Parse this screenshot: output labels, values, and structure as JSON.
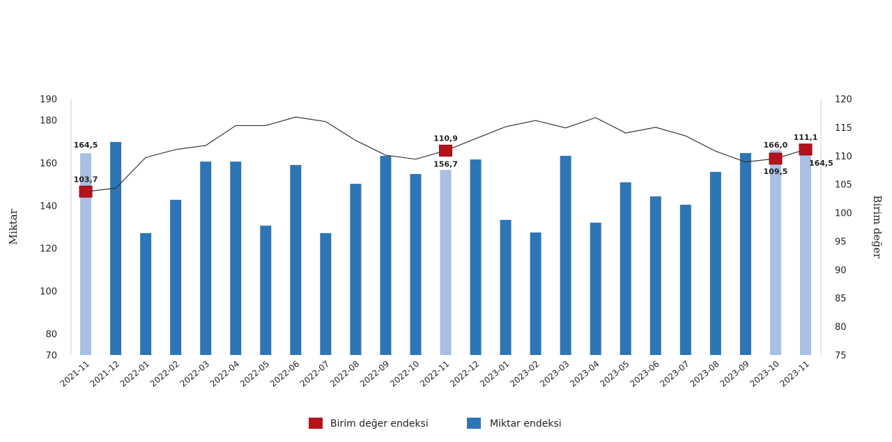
{
  "chart_data": {
    "type": "bar+line",
    "title": "",
    "categories": [
      "2021-11",
      "2021-12",
      "2022-01",
      "2022-02",
      "2022-03",
      "2022-04",
      "2022-05",
      "2022-06",
      "2022-07",
      "2022-08",
      "2022-09",
      "2022-10",
      "2022-11",
      "2022-12",
      "2023-01",
      "2023-02",
      "2023-03",
      "2023-04",
      "2023-05",
      "2023-06",
      "2023-07",
      "2023-08",
      "2023-09",
      "2023-10",
      "2023-11"
    ],
    "left_axis": {
      "label": "Miktar",
      "range": [
        70,
        190
      ],
      "ticks": [
        70,
        80,
        100,
        120,
        140,
        160,
        180,
        190
      ]
    },
    "right_axis": {
      "label": "Birim değer",
      "range": [
        75,
        120
      ],
      "ticks": [
        75,
        80,
        85,
        90,
        95,
        100,
        105,
        110,
        115,
        120
      ]
    },
    "grid": false,
    "legend_position": "bottom",
    "series": [
      {
        "name": "Birim değer endeksi",
        "type": "line",
        "axis": "right",
        "color": "#b5121b",
        "values": [
          103.7,
          104.3,
          109.7,
          111.1,
          111.8,
          115.3,
          115.3,
          116.8,
          116.0,
          112.7,
          110.1,
          109.4,
          110.9,
          113.0,
          115.1,
          116.2,
          114.9,
          116.7,
          114.0,
          115.0,
          113.5,
          110.8,
          108.9,
          109.5,
          111.1
        ],
        "markers_at": [
          "2021-11",
          "2022-11",
          "2023-10",
          "2023-11"
        ]
      },
      {
        "name": "Miktar endeksi",
        "type": "bar",
        "axis": "left",
        "color": "#2e75b6",
        "highlight_color": "#a9bfe4",
        "values": [
          164.5,
          169.8,
          127.1,
          142.7,
          160.6,
          160.6,
          130.6,
          159.0,
          127.1,
          150.2,
          163.3,
          154.8,
          156.7,
          161.6,
          133.3,
          127.4,
          163.3,
          132.0,
          150.9,
          144.3,
          140.4,
          155.8,
          164.6,
          166.0,
          164.5
        ],
        "highlighted": [
          "2021-11",
          "2022-11",
          "2023-10",
          "2023-11"
        ]
      }
    ],
    "data_labels": [
      {
        "category": "2021-11",
        "series": "Miktar endeksi",
        "text": "164,5",
        "position": "above-bar"
      },
      {
        "category": "2021-11",
        "series": "Birim değer endeksi",
        "text": "103,7",
        "position": "above"
      },
      {
        "category": "2022-11",
        "series": "Birim değer endeksi",
        "text": "110,9",
        "position": "above"
      },
      {
        "category": "2022-11",
        "series": "Miktar endeksi",
        "text": "156,7",
        "position": "below-marker"
      },
      {
        "category": "2023-10",
        "series": "Miktar endeksi",
        "text": "166,0",
        "position": "above-marker"
      },
      {
        "category": "2023-10",
        "series": "Birim değer endeksi",
        "text": "109,5",
        "position": "below"
      },
      {
        "category": "2023-11",
        "series": "Birim değer endeksi",
        "text": "111,1",
        "position": "above"
      },
      {
        "category": "2023-11",
        "series": "Miktar endeksi",
        "text": "164,5",
        "position": "right-below"
      }
    ]
  }
}
